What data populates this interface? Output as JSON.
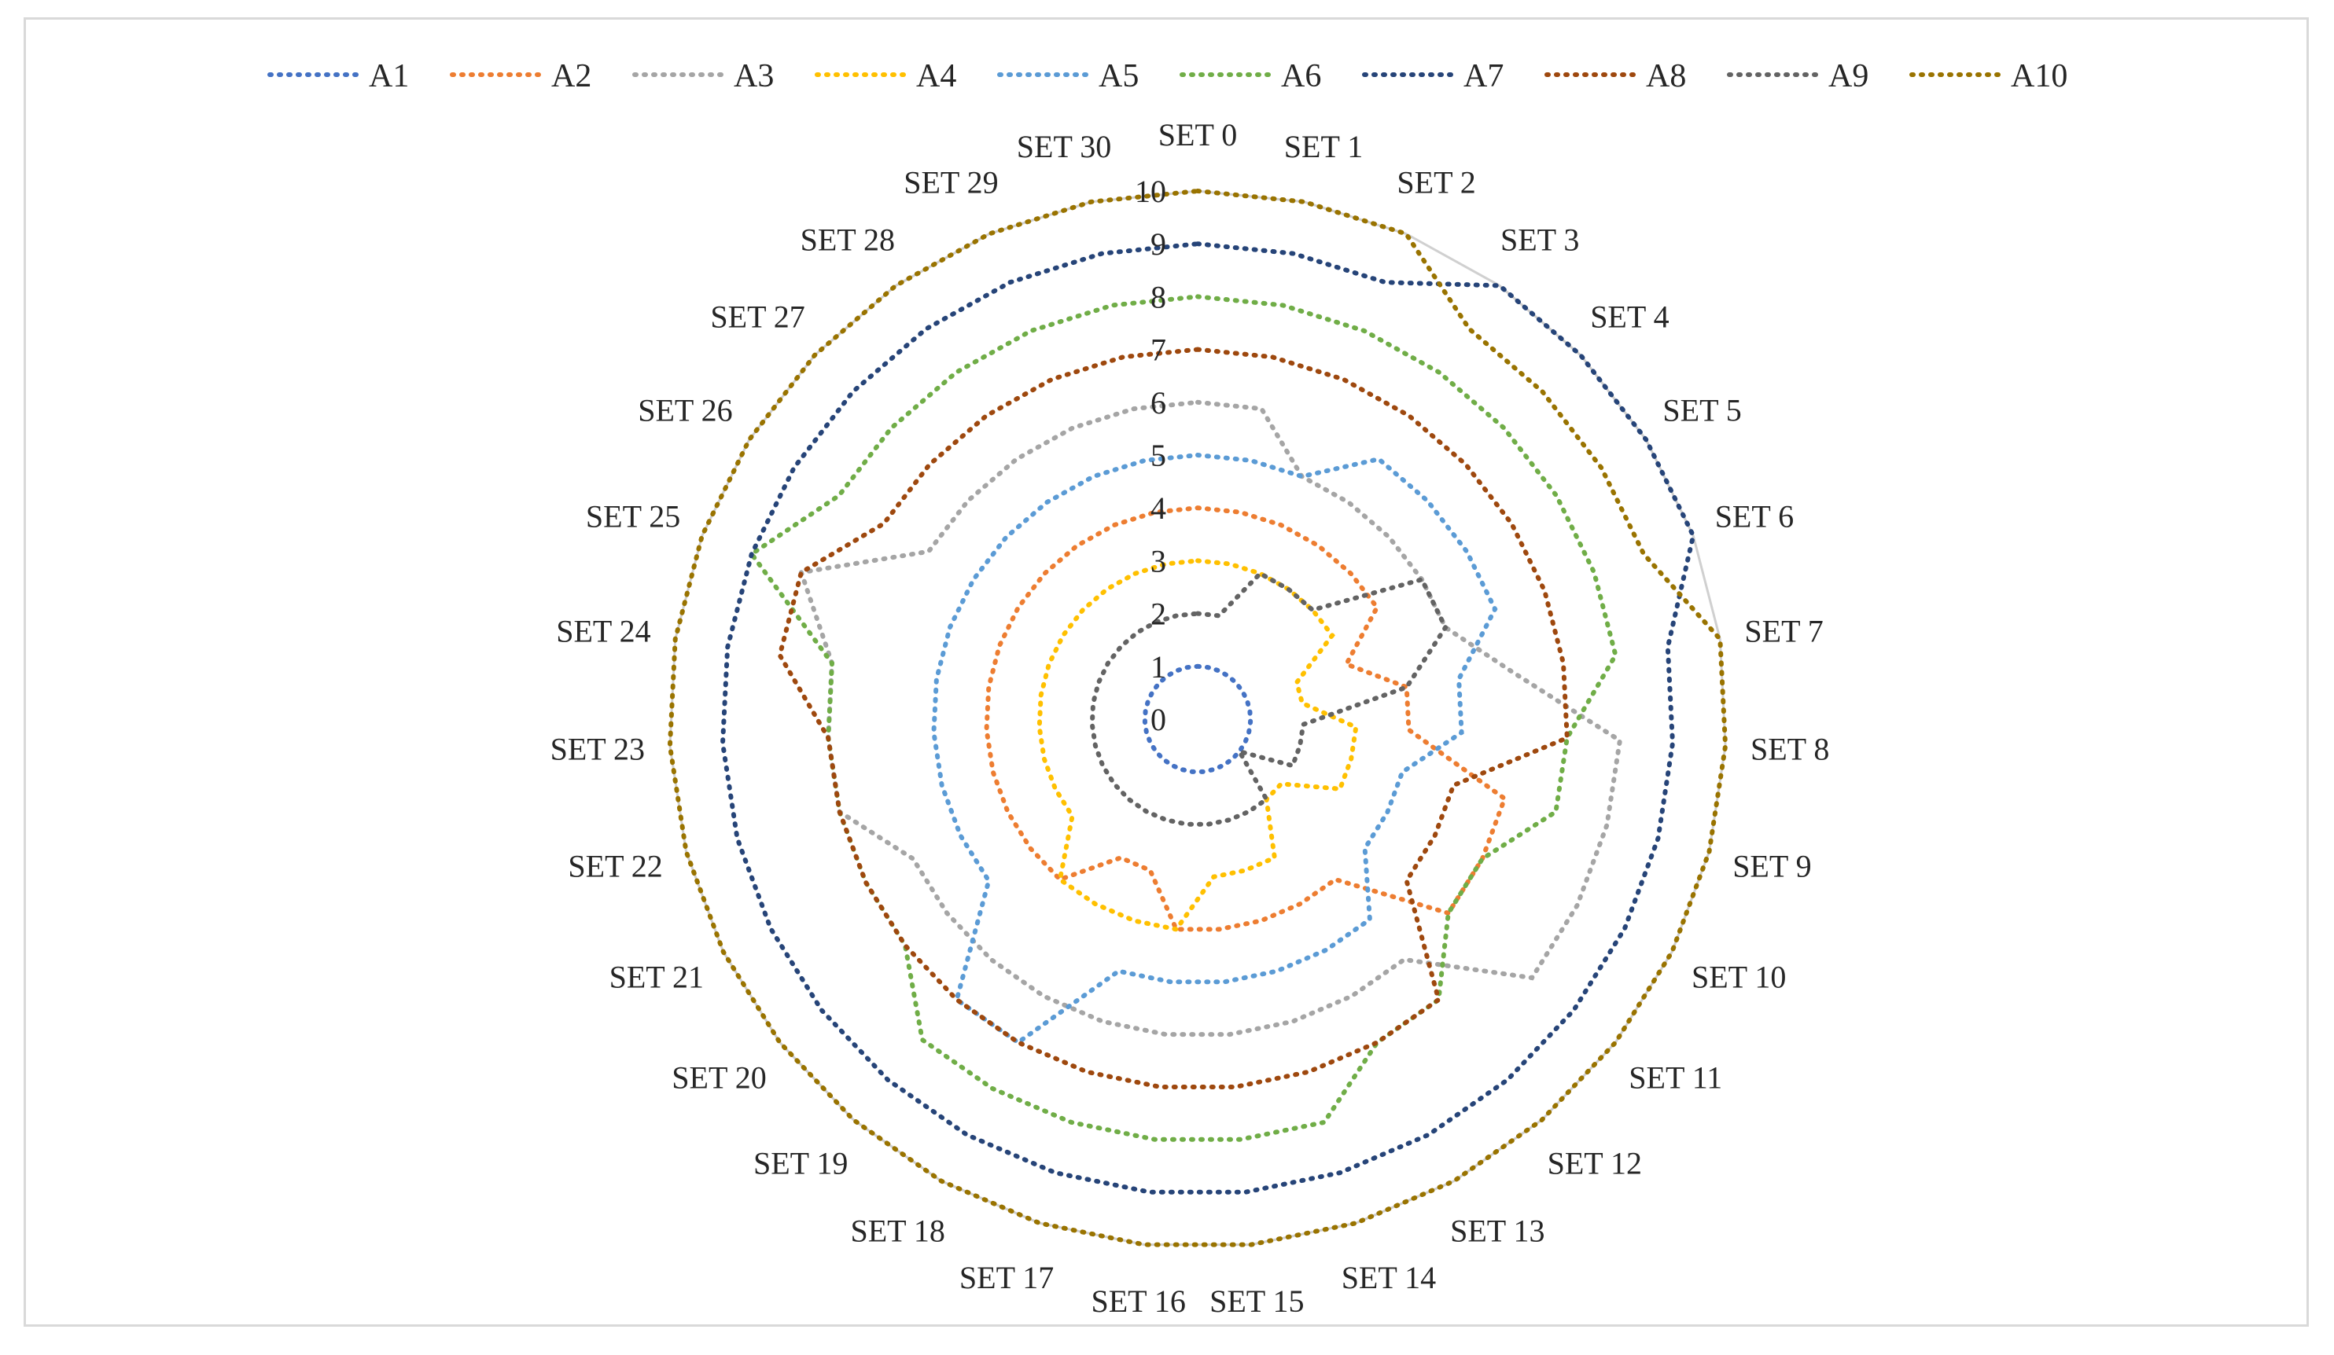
{
  "chart_data": {
    "type": "radar",
    "title": "",
    "categories": [
      "SET 0",
      "SET 1",
      "SET 2",
      "SET 3",
      "SET 4",
      "SET 5",
      "SET 6",
      "SET 7",
      "SET 8",
      "SET 9",
      "SET 10",
      "SET 11",
      "SET 12",
      "SET 13",
      "SET 14",
      "SET 15",
      "SET 16",
      "SET 17",
      "SET 18",
      "SET 19",
      "SET 20",
      "SET 21",
      "SET 22",
      "SET 23",
      "SET 24",
      "SET 25",
      "SET 26",
      "SET 27",
      "SET 28",
      "SET 29",
      "SET 30"
    ],
    "radial_axis": {
      "min": 0,
      "max": 10,
      "ticks": [
        0,
        1,
        2,
        3,
        4,
        5,
        6,
        7,
        8,
        9,
        10
      ]
    },
    "grid": true,
    "legend_position": "top",
    "series": [
      {
        "name": "A1",
        "color": "#4472c4",
        "values": [
          1,
          1,
          1,
          1,
          1,
          1,
          1,
          1,
          1,
          1,
          1,
          1,
          1,
          1,
          1,
          1,
          1,
          1,
          1,
          1,
          1,
          1,
          1,
          1,
          1,
          1,
          1,
          1,
          1,
          1,
          1
        ]
      },
      {
        "name": "A2",
        "color": "#ed7d31",
        "values": [
          4,
          4,
          4,
          4,
          4,
          4,
          3,
          4,
          4,
          6,
          6,
          6,
          4,
          4,
          4,
          4,
          4,
          3,
          3,
          4,
          4,
          4,
          4,
          4,
          4,
          4,
          4,
          4,
          4,
          4,
          4
        ]
      },
      {
        "name": "A3",
        "color": "#a5a5a5",
        "values": [
          6,
          6,
          5,
          5,
          5,
          5,
          5,
          6,
          8,
          8,
          8,
          8,
          6,
          6,
          6,
          6,
          6,
          6,
          6,
          6,
          6,
          6,
          7,
          7,
          7,
          8,
          6,
          6,
          6,
          6,
          6
        ]
      },
      {
        "name": "A4",
        "color": "#ffc000",
        "values": [
          3,
          3,
          3,
          3,
          3,
          3,
          2,
          2,
          3,
          3,
          3,
          2,
          2,
          3,
          3,
          3,
          4,
          4,
          4,
          4,
          3,
          3,
          3,
          3,
          3,
          3,
          3,
          3,
          3,
          3,
          3
        ]
      },
      {
        "name": "A5",
        "color": "#5b9bd5",
        "values": [
          5,
          5,
          5,
          6,
          6,
          6,
          6,
          5,
          5,
          4,
          4,
          4,
          5,
          5,
          5,
          5,
          5,
          5,
          7,
          7,
          5,
          5,
          5,
          5,
          5,
          5,
          5,
          5,
          5,
          5,
          5
        ]
      },
      {
        "name": "A6",
        "color": "#70ad47",
        "values": [
          8,
          8,
          8,
          8,
          8,
          8,
          8,
          8,
          7,
          7,
          6,
          6,
          7,
          7,
          8,
          8,
          8,
          8,
          8,
          8,
          7,
          7,
          7,
          7,
          7,
          9,
          8,
          8,
          8,
          8,
          8
        ]
      },
      {
        "name": "A7",
        "color": "#264478",
        "values": [
          9,
          9,
          9,
          10,
          10,
          10,
          10,
          9,
          9,
          9,
          9,
          9,
          9,
          9,
          9,
          9,
          9,
          9,
          9,
          9,
          9,
          9,
          9,
          9,
          9,
          9,
          9,
          9,
          9,
          9,
          9
        ]
      },
      {
        "name": "A8",
        "color": "#9e480e",
        "values": [
          7,
          7,
          7,
          7,
          7,
          7,
          7,
          7,
          7,
          5,
          5,
          5,
          7,
          7,
          7,
          7,
          7,
          7,
          7,
          7,
          7,
          7,
          7,
          7,
          8,
          8,
          7,
          7,
          7,
          7,
          7
        ]
      },
      {
        "name": "A9",
        "color": "#636363",
        "values": [
          2,
          2,
          3,
          3,
          3,
          5,
          5,
          4,
          2,
          2,
          2,
          1,
          2,
          2,
          2,
          2,
          2,
          2,
          2,
          2,
          2,
          2,
          2,
          2,
          2,
          2,
          2,
          2,
          2,
          2,
          2
        ]
      },
      {
        "name": "A10",
        "color": "#997300",
        "values": [
          10,
          10,
          10,
          9,
          9,
          9,
          9,
          10,
          10,
          10,
          10,
          10,
          10,
          10,
          10,
          10,
          10,
          10,
          10,
          10,
          10,
          10,
          10,
          10,
          10,
          10,
          10,
          10,
          10,
          10,
          10
        ]
      }
    ]
  }
}
